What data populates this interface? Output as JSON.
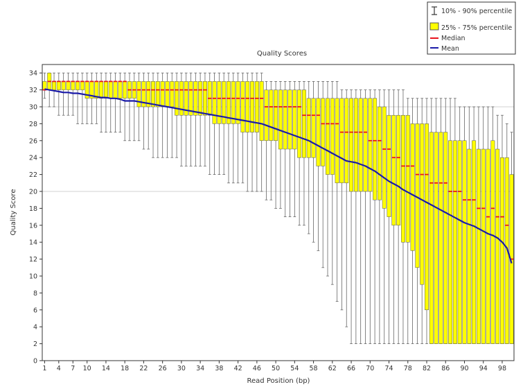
{
  "chart_data": {
    "type": "boxplot",
    "title": "Quality Scores",
    "xlabel": "Read Position (bp)",
    "ylabel": "Quality Score",
    "xlim": [
      1,
      100
    ],
    "ylim": [
      0,
      35
    ],
    "yticks": [
      "0",
      "2",
      "4",
      "6",
      "8",
      "10",
      "12",
      "14",
      "16",
      "18",
      "20",
      "22",
      "24",
      "26",
      "28",
      "30",
      "32",
      "34"
    ],
    "xticks": [
      "1",
      "4",
      "7",
      "10",
      "14",
      "18",
      "22",
      "26",
      "30",
      "34",
      "38",
      "42",
      "46",
      "50",
      "54",
      "58",
      "62",
      "66",
      "70",
      "74",
      "78",
      "82",
      "86",
      "90",
      "94",
      "98"
    ],
    "reference_lines": [
      20,
      30
    ],
    "legend": {
      "placement": "top-right",
      "items": [
        {
          "type": "whisker",
          "label": "10% - 90% percentile"
        },
        {
          "type": "box",
          "label": "25% - 75% percentile"
        },
        {
          "type": "median",
          "label": "Median"
        },
        {
          "type": "mean",
          "label": "Mean"
        }
      ]
    },
    "colors": {
      "box": "#ffff00",
      "box_edge": "#555555",
      "whisker": "#666666",
      "median": "#e8141e",
      "mean": "#1a1aa8",
      "grid": "#d0d0d0"
    },
    "positions": [
      1,
      2,
      3,
      4,
      5,
      6,
      7,
      8,
      9,
      10,
      11,
      12,
      13,
      14,
      15,
      16,
      17,
      18,
      19,
      20,
      21,
      22,
      23,
      24,
      25,
      26,
      27,
      28,
      29,
      30,
      31,
      32,
      33,
      34,
      35,
      36,
      37,
      38,
      39,
      40,
      41,
      42,
      43,
      44,
      45,
      46,
      47,
      48,
      49,
      50,
      51,
      52,
      53,
      54,
      55,
      56,
      57,
      58,
      59,
      60,
      61,
      62,
      63,
      64,
      65,
      66,
      67,
      68,
      69,
      70,
      71,
      72,
      73,
      74,
      75,
      76,
      77,
      78,
      79,
      80,
      81,
      82,
      83,
      84,
      85,
      86,
      87,
      88,
      89,
      90,
      91,
      92,
      93,
      94,
      95,
      96,
      97,
      98,
      99,
      100
    ],
    "p10": [
      31,
      30,
      30,
      29,
      29,
      29,
      29,
      28,
      28,
      28,
      28,
      28,
      27,
      27,
      27,
      27,
      27,
      26,
      26,
      26,
      26,
      25,
      25,
      24,
      24,
      24,
      24,
      24,
      24,
      23,
      23,
      23,
      23,
      23,
      23,
      22,
      22,
      22,
      22,
      21,
      21,
      21,
      21,
      20,
      20,
      20,
      20,
      19,
      19,
      18,
      18,
      17,
      17,
      17,
      16,
      16,
      15,
      14,
      13,
      11,
      10,
      9,
      7,
      6,
      4,
      2,
      2,
      2,
      2,
      2,
      2,
      2,
      2,
      2,
      2,
      2,
      2,
      2,
      2,
      2,
      2,
      2,
      2,
      2,
      2,
      2,
      2,
      2,
      2,
      2,
      2,
      2,
      2,
      2,
      2,
      2,
      2,
      2,
      2,
      2
    ],
    "q1": [
      32,
      32,
      32,
      32,
      32,
      32,
      32,
      32,
      32,
      31,
      31,
      31,
      31,
      31,
      31,
      31,
      31,
      31,
      31,
      31,
      30,
      30,
      30,
      30,
      30,
      30,
      30,
      30,
      29,
      29,
      29,
      29,
      29,
      29,
      29,
      29,
      28,
      28,
      28,
      28,
      28,
      28,
      27,
      27,
      27,
      27,
      26,
      26,
      26,
      26,
      25,
      25,
      25,
      25,
      24,
      24,
      24,
      24,
      23,
      23,
      22,
      22,
      21,
      21,
      21,
      20,
      20,
      20,
      20,
      20,
      19,
      19,
      18,
      17,
      16,
      16,
      14,
      14,
      13,
      11,
      9,
      6,
      2,
      2,
      2,
      2,
      2,
      2,
      2,
      2,
      2,
      2,
      2,
      2,
      2,
      2,
      2,
      2,
      2,
      2
    ],
    "median": [
      32,
      33,
      33,
      33,
      33,
      33,
      33,
      33,
      33,
      33,
      33,
      33,
      33,
      33,
      33,
      33,
      33,
      33,
      32,
      32,
      32,
      32,
      32,
      32,
      32,
      32,
      32,
      32,
      32,
      32,
      32,
      32,
      32,
      32,
      32,
      31,
      31,
      31,
      31,
      31,
      31,
      31,
      31,
      31,
      31,
      31,
      31,
      30,
      30,
      30,
      30,
      30,
      30,
      30,
      30,
      29,
      29,
      29,
      29,
      28,
      28,
      28,
      28,
      27,
      27,
      27,
      27,
      27,
      27,
      26,
      26,
      26,
      25,
      25,
      24,
      24,
      23,
      23,
      23,
      22,
      22,
      22,
      21,
      21,
      21,
      21,
      20,
      20,
      20,
      19,
      19,
      19,
      18,
      18,
      17,
      18,
      17,
      17,
      16,
      12
    ],
    "q3": [
      33,
      34,
      33,
      33,
      33,
      33,
      33,
      33,
      33,
      33,
      33,
      33,
      33,
      33,
      33,
      33,
      33,
      33,
      33,
      33,
      33,
      33,
      33,
      33,
      33,
      33,
      33,
      33,
      33,
      33,
      33,
      33,
      33,
      33,
      33,
      33,
      33,
      33,
      33,
      33,
      33,
      33,
      33,
      33,
      33,
      33,
      33,
      32,
      32,
      32,
      32,
      32,
      32,
      32,
      32,
      32,
      31,
      31,
      31,
      31,
      31,
      31,
      31,
      31,
      31,
      31,
      31,
      31,
      31,
      31,
      31,
      30,
      30,
      29,
      29,
      29,
      29,
      29,
      28,
      28,
      28,
      28,
      27,
      27,
      27,
      27,
      26,
      26,
      26,
      26,
      25,
      26,
      25,
      25,
      25,
      26,
      25,
      24,
      24,
      22
    ],
    "p90": [
      34,
      34,
      34,
      34,
      34,
      34,
      34,
      34,
      34,
      34,
      34,
      34,
      34,
      34,
      34,
      34,
      34,
      34,
      34,
      34,
      34,
      34,
      34,
      34,
      34,
      34,
      34,
      34,
      34,
      34,
      34,
      34,
      34,
      34,
      34,
      34,
      34,
      34,
      34,
      34,
      34,
      34,
      34,
      34,
      34,
      34,
      34,
      33,
      33,
      33,
      33,
      33,
      33,
      33,
      33,
      33,
      33,
      33,
      33,
      33,
      33,
      33,
      33,
      32,
      32,
      32,
      32,
      32,
      32,
      32,
      32,
      32,
      32,
      32,
      32,
      32,
      32,
      31,
      31,
      31,
      31,
      31,
      31,
      31,
      31,
      31,
      31,
      31,
      30,
      30,
      30,
      30,
      30,
      30,
      30,
      30,
      29,
      29,
      28,
      27
    ],
    "mean": [
      32.1,
      32.0,
      31.9,
      31.8,
      31.7,
      31.7,
      31.6,
      31.6,
      31.5,
      31.4,
      31.3,
      31.2,
      31.1,
      31.1,
      31.0,
      31.0,
      30.9,
      30.7,
      30.7,
      30.7,
      30.6,
      30.5,
      30.4,
      30.3,
      30.2,
      30.1,
      30.0,
      29.9,
      29.8,
      29.7,
      29.6,
      29.5,
      29.4,
      29.3,
      29.2,
      29.1,
      29.0,
      28.9,
      28.8,
      28.7,
      28.6,
      28.5,
      28.4,
      28.3,
      28.2,
      28.1,
      28.0,
      27.8,
      27.6,
      27.4,
      27.2,
      27.0,
      26.8,
      26.6,
      26.4,
      26.2,
      26.0,
      25.7,
      25.4,
      25.1,
      24.8,
      24.5,
      24.2,
      23.9,
      23.6,
      23.5,
      23.4,
      23.2,
      23.0,
      22.7,
      22.4,
      22.0,
      21.6,
      21.2,
      20.9,
      20.6,
      20.2,
      19.9,
      19.6,
      19.3,
      19.0,
      18.7,
      18.4,
      18.1,
      17.8,
      17.5,
      17.2,
      16.9,
      16.6,
      16.3,
      16.1,
      15.9,
      15.6,
      15.3,
      15.0,
      14.8,
      14.5,
      14.0,
      13.3,
      11.5
    ]
  }
}
